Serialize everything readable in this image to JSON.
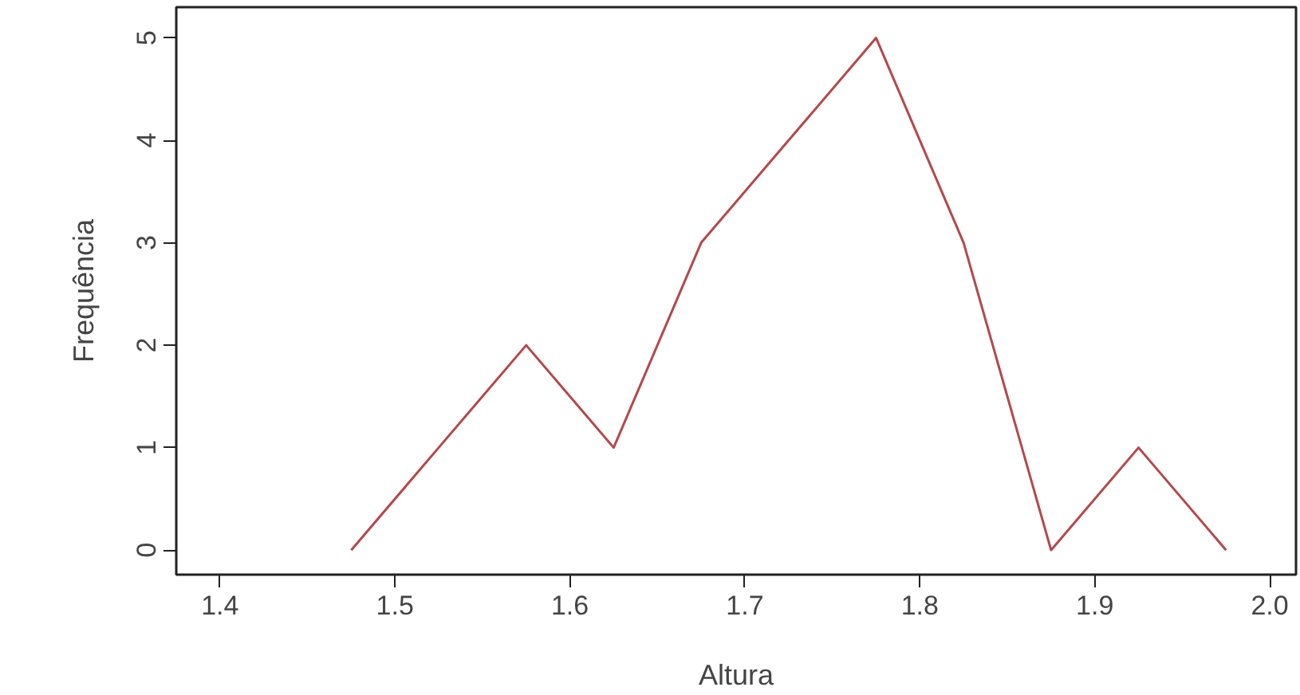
{
  "chart_data": {
    "type": "line",
    "xlabel": "Altura",
    "ylabel": "Frequência",
    "x": [
      1.475,
      1.525,
      1.575,
      1.625,
      1.675,
      1.725,
      1.775,
      1.825,
      1.875,
      1.925,
      1.975
    ],
    "series": [
      {
        "color": "#b5474b",
        "values": [
          0,
          1,
          2,
          1,
          3,
          4,
          5,
          3,
          0,
          1,
          0
        ]
      }
    ],
    "xlim": [
      1.375,
      2.015
    ],
    "ylim": [
      -0.24,
      5.3
    ],
    "xticks": [
      1.4,
      1.5,
      1.6,
      1.7,
      1.8,
      1.9,
      {
        "value": 2,
        "label": "2.0"
      }
    ],
    "yticks": [
      0,
      1,
      2,
      3,
      4,
      5
    ],
    "grid": false,
    "marker": "none",
    "line_style": "solid"
  }
}
